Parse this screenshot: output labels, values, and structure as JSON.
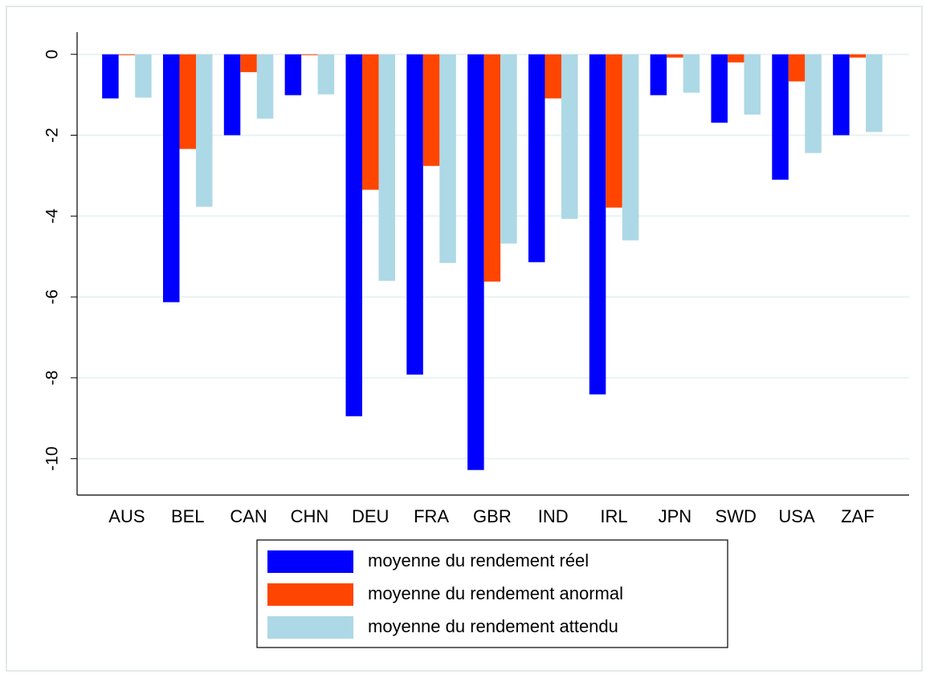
{
  "chart_data": {
    "type": "bar",
    "categories": [
      "AUS",
      "BEL",
      "CAN",
      "CHN",
      "DEU",
      "FRA",
      "GBR",
      "IND",
      "IRL",
      "JPN",
      "SWD",
      "USA",
      "ZAF"
    ],
    "series": [
      {
        "name": "moyenne du rendement réel",
        "color": "#0000ff",
        "values": [
          -1.09,
          -6.13,
          -2.0,
          -1.01,
          -8.95,
          -7.92,
          -10.28,
          -5.14,
          -8.41,
          -1.01,
          -1.69,
          -3.1,
          -2.0
        ]
      },
      {
        "name": "moyenne du rendement anormal",
        "color": "#ff4500",
        "values": [
          -0.02,
          -2.34,
          -0.44,
          -0.02,
          -3.35,
          -2.76,
          -5.62,
          -1.09,
          -3.79,
          -0.08,
          -0.2,
          -0.67,
          -0.08
        ]
      },
      {
        "name": "moyenne du rendement attendu",
        "color": "#add8e6",
        "values": [
          -1.07,
          -3.77,
          -1.59,
          -0.99,
          -5.6,
          -5.16,
          -4.68,
          -4.07,
          -4.6,
          -0.95,
          -1.49,
          -2.44,
          -1.92
        ]
      }
    ],
    "ylim": [
      -10.9,
      0.55
    ],
    "yticks": [
      0,
      -2,
      -4,
      -6,
      -8,
      -10
    ],
    "grid": true
  }
}
